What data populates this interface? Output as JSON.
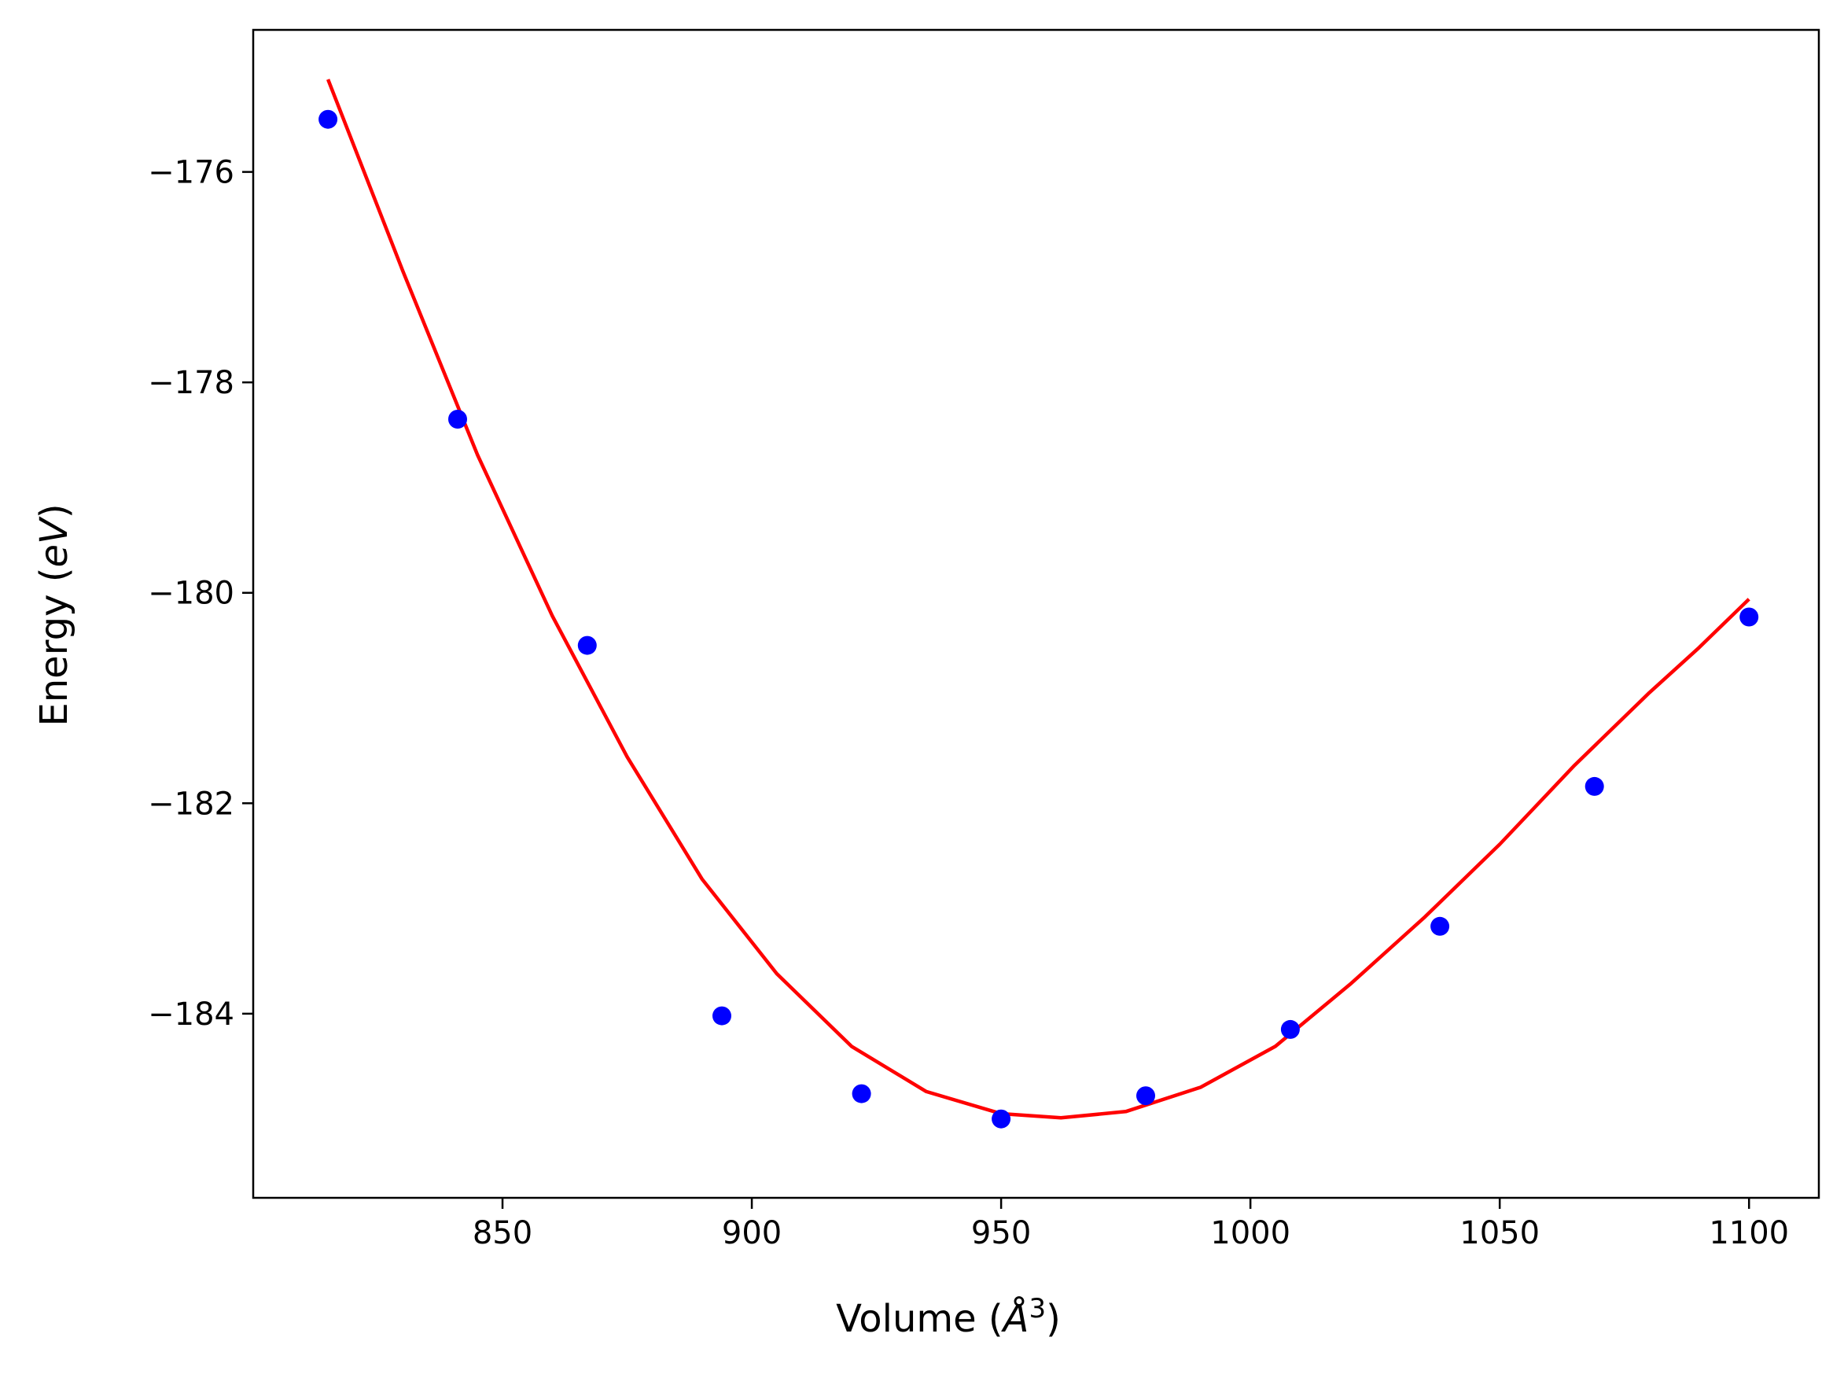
{
  "chart_data": {
    "type": "scatter",
    "title": "",
    "xlabel": {
      "prefix": "Volume (",
      "symbol": "Å",
      "sup": "3",
      "suffix": ")"
    },
    "ylabel": {
      "prefix": "Energy (",
      "unit": "eV",
      "suffix": ")"
    },
    "xlim": [
      800,
      1114
    ],
    "ylim": [
      -185.75,
      -174.65
    ],
    "xticks": [
      850,
      900,
      950,
      1000,
      1050,
      1100
    ],
    "yticks": [
      -176,
      -178,
      -180,
      -182,
      -184
    ],
    "xtick_labels": [
      "850",
      "900",
      "950",
      "1000",
      "1050",
      "1100"
    ],
    "ytick_labels": [
      "−176",
      "−178",
      "−180",
      "−182",
      "−184"
    ],
    "grid": false,
    "series": [
      {
        "kind": "points",
        "color": "#0000ff",
        "x": [
          815,
          841,
          867,
          894,
          922,
          950,
          979,
          1008,
          1038,
          1069,
          1100
        ],
        "y": [
          -175.5,
          -178.35,
          -180.5,
          -184.02,
          -184.76,
          -185.0,
          -184.78,
          -184.15,
          -183.17,
          -181.84,
          -180.23
        ]
      },
      {
        "kind": "fit-curve",
        "color": "#ff0000",
        "x": [
          815,
          830,
          845,
          860,
          875,
          890,
          905,
          920,
          935,
          950,
          962,
          975,
          990,
          1005,
          1020,
          1035,
          1050,
          1065,
          1080,
          1090,
          1100
        ],
        "y": [
          -175.12,
          -176.94,
          -178.69,
          -180.22,
          -181.56,
          -182.72,
          -183.62,
          -184.31,
          -184.74,
          -184.95,
          -184.99,
          -184.93,
          -184.7,
          -184.31,
          -183.72,
          -183.08,
          -182.39,
          -181.64,
          -180.95,
          -180.52,
          -180.06
        ]
      }
    ]
  }
}
